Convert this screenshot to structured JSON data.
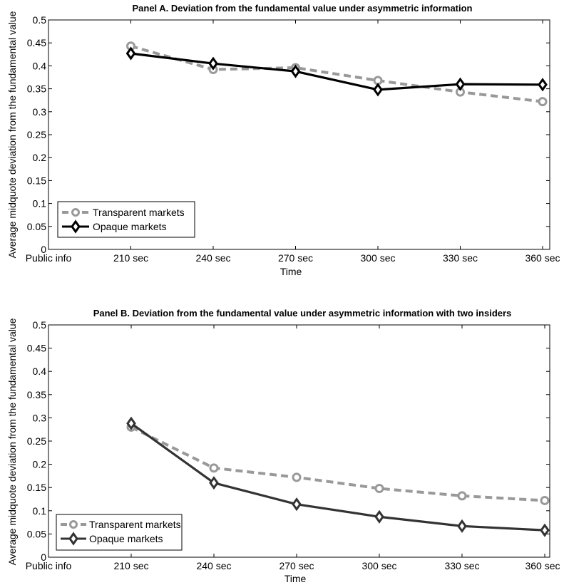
{
  "colors": {
    "transparent_a": "#999999",
    "opaque_a": "#000000",
    "transparent_b": "#999999",
    "opaque_b": "#333333"
  },
  "chart_data": [
    {
      "type": "line",
      "title": "Panel A. Deviation from the fundamental value under asymmetric information",
      "xlabel": "Time",
      "ylabel": "Average midquote deviation from the fundamental value",
      "categories": [
        "Public info",
        "210 sec",
        "240 sec",
        "270 sec",
        "300 sec",
        "330 sec",
        "360 sec"
      ],
      "yticks": [
        "0",
        "0.05",
        "0.1",
        "0.15",
        "0.2",
        "0.25",
        "0.3",
        "0.35",
        "0.4",
        "0.45",
        "0.5"
      ],
      "ylim": [
        0,
        0.5
      ],
      "grid": false,
      "legend_position": "bottom-left",
      "series": [
        {
          "name": "Transparent markets",
          "marker": "circle",
          "dashed": true,
          "x": [
            1,
            2,
            3,
            4,
            5,
            6
          ],
          "values": [
            0.443,
            0.392,
            0.396,
            0.368,
            0.343,
            0.322
          ]
        },
        {
          "name": "Opaque markets",
          "marker": "diamond",
          "dashed": false,
          "x": [
            1,
            2,
            3,
            4,
            5,
            6
          ],
          "values": [
            0.427,
            0.405,
            0.388,
            0.348,
            0.36,
            0.359
          ]
        }
      ]
    },
    {
      "type": "line",
      "title": "Panel B. Deviation from the fundamental value under asymmetric information with two insiders",
      "xlabel": "Time",
      "ylabel": "Average midquote deviation from the fundamental value",
      "categories": [
        "Public info",
        "210 sec",
        "240 sec",
        "270 sec",
        "300 sec",
        "330 sec",
        "360 sec"
      ],
      "yticks": [
        "0",
        "0.05",
        "0.1",
        "0.15",
        "0.2",
        "0.25",
        "0.3",
        "0.35",
        "0.4",
        "0.45",
        "0.5"
      ],
      "ylim": [
        0,
        0.5
      ],
      "grid": false,
      "legend_position": "bottom-left",
      "series": [
        {
          "name": "Transparent markets",
          "marker": "circle",
          "dashed": true,
          "x": [
            1,
            2,
            3,
            4,
            5,
            6
          ],
          "values": [
            0.28,
            0.192,
            0.172,
            0.148,
            0.132,
            0.122
          ]
        },
        {
          "name": "Opaque markets",
          "marker": "diamond",
          "dashed": false,
          "x": [
            1,
            2,
            3,
            4,
            5,
            6
          ],
          "values": [
            0.288,
            0.16,
            0.114,
            0.087,
            0.067,
            0.058
          ]
        }
      ]
    }
  ]
}
